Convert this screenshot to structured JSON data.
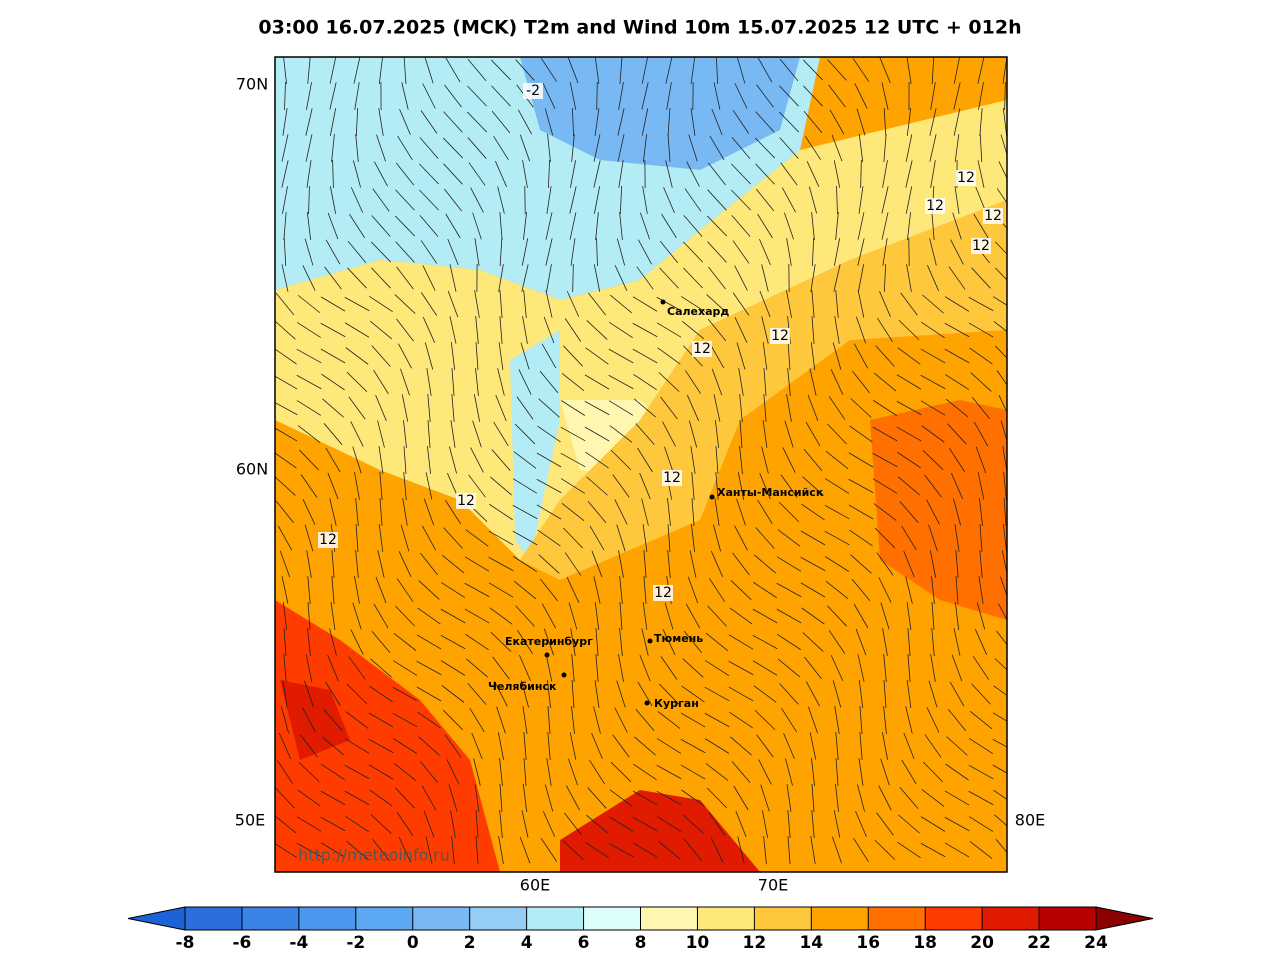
{
  "header": {
    "title": "03:00 16.07.2025 (MCK) T2m and Wind 10m 15.07.2025 12 UTC + 012h"
  },
  "map": {
    "axis_labels": [
      "70N",
      "60N",
      "50E",
      "80E",
      "60E",
      "70E"
    ],
    "cities": [
      "Салехард",
      "Ханты-Мансийск",
      "Екатеринбург",
      "Тюмень",
      "Челябинск",
      "Курган"
    ],
    "contour_labels": [
      "12",
      "12",
      "12",
      "12",
      "12",
      "12",
      "12",
      "12",
      "12",
      "12",
      "-2"
    ],
    "credit": "http://meteoinfo.ru"
  },
  "colorbar": {
    "ticks": [
      -8,
      -6,
      -4,
      -2,
      0,
      2,
      4,
      6,
      8,
      10,
      12,
      14,
      16,
      18,
      20,
      22,
      24
    ],
    "colors": [
      "#2a6fdb",
      "#3a83e6",
      "#4b96ef",
      "#5ca8f2",
      "#79b9f3",
      "#96cdf5",
      "#b4ecf5",
      "#dcfdfb",
      "#fff7b0",
      "#ffe87a",
      "#ffc83c",
      "#ffa300",
      "#ff7000",
      "#ff3c00",
      "#e01b00",
      "#b80000"
    ],
    "under_color": "#1c62d9",
    "over_color": "#8b0000"
  }
}
